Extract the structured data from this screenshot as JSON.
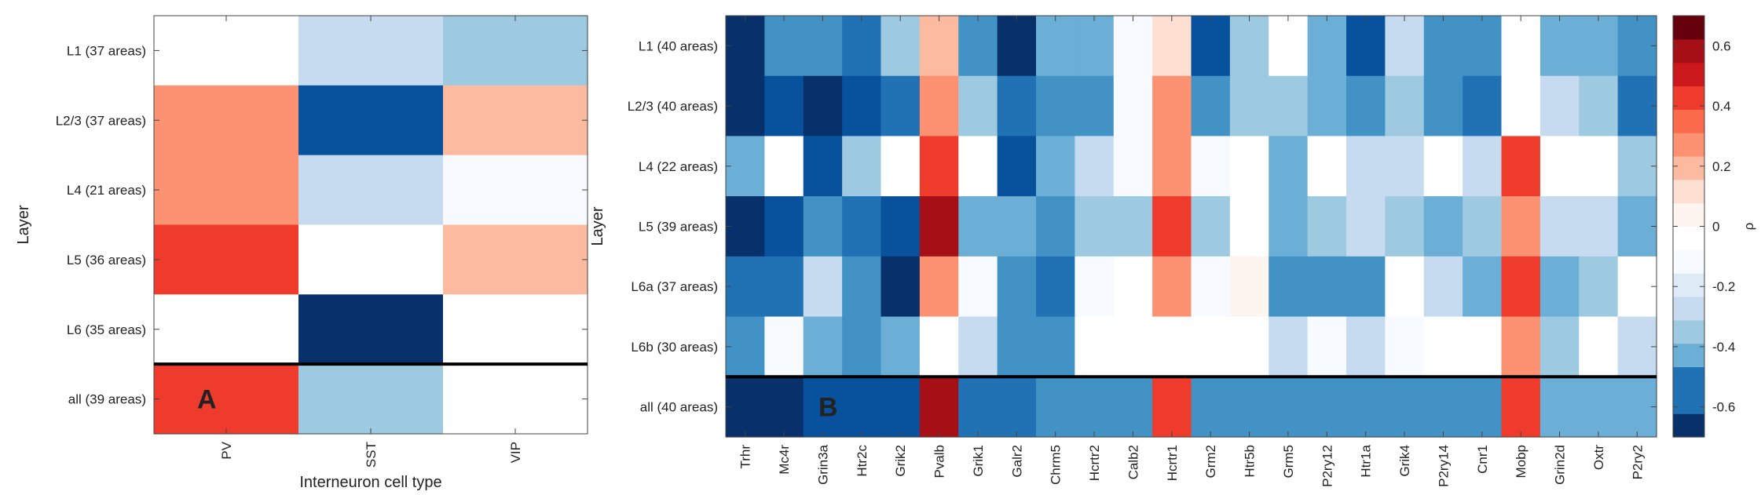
{
  "colors": {
    "scale": [
      "#08306b",
      "#08519c",
      "#2171b5",
      "#4292c6",
      "#6baed6",
      "#9ecae1",
      "#c6dbef",
      "#deebf7",
      "#f7fbff",
      "#ffffff",
      "#fff5f0",
      "#fee0d2",
      "#fcbba1",
      "#fc9272",
      "#fb6a4a",
      "#ef3b2c",
      "#cb181d",
      "#a50f15",
      "#67000d"
    ],
    "highlight_line": "#000000"
  },
  "chart_data": [
    {
      "type": "heatmap",
      "panel_label": "A",
      "xlabel": "Interneuron cell type",
      "ylabel": "Layer",
      "columns": [
        "PV",
        "SST",
        "VIP"
      ],
      "rows": [
        "L1 (37 areas)",
        "L2/3 (37 areas)",
        "L4 (21 areas)",
        "L5 (36 areas)",
        "L6 (35 areas)",
        "all (39 areas)"
      ],
      "values": [
        [
          0.0,
          -0.25,
          -0.35
        ],
        [
          0.3,
          -0.6,
          0.2
        ],
        [
          0.3,
          -0.2,
          -0.1
        ],
        [
          0.5,
          0.0,
          0.2
        ],
        [
          0.0,
          -0.7,
          0.0
        ],
        [
          0.5,
          -0.3,
          0.0
        ]
      ],
      "summary_row_separator": "above last row"
    },
    {
      "type": "heatmap",
      "panel_label": "B",
      "xlabel": "",
      "ylabel": "Layer",
      "columns": [
        "Trhr",
        "Mc4r",
        "Grin3a",
        "Htr2c",
        "Grik2",
        "Pvalb",
        "Grik1",
        "Galr2",
        "Chrm5",
        "Hcrtr2",
        "Calb2",
        "Hcrtr1",
        "Grm2",
        "Htr5b",
        "Grm5",
        "P2ry12",
        "Htr1a",
        "Grik4",
        "P2ry14",
        "Cnr1",
        "Mobp",
        "Grin2d",
        "Oxtr",
        "P2ry2"
      ],
      "rows": [
        "L1 (40 areas)",
        "L2/3 (40 areas)",
        "L4 (22 areas)",
        "L5 (39 areas)",
        "L6a (37 areas)",
        "L6b (30 areas)",
        "all (40 areas)"
      ],
      "values": [
        [
          -0.7,
          -0.45,
          -0.5,
          -0.55,
          -0.3,
          0.25,
          -0.45,
          -0.7,
          -0.4,
          -0.4,
          -0.1,
          0.15,
          -0.6,
          -0.3,
          0.0,
          -0.4,
          -0.6,
          -0.2,
          -0.45,
          -0.5,
          0.0,
          -0.4,
          -0.4,
          -0.45
        ],
        [
          -0.7,
          -0.6,
          -0.7,
          -0.6,
          -0.55,
          0.35,
          -0.3,
          -0.55,
          -0.5,
          -0.45,
          -0.1,
          0.35,
          -0.5,
          -0.3,
          -0.3,
          -0.4,
          -0.5,
          -0.3,
          -0.45,
          -0.55,
          0.0,
          -0.2,
          -0.3,
          -0.55
        ],
        [
          -0.4,
          0.0,
          -0.6,
          -0.3,
          0.0,
          0.45,
          0.0,
          -0.6,
          -0.4,
          -0.2,
          -0.1,
          0.35,
          -0.1,
          0.0,
          -0.4,
          0.0,
          -0.2,
          -0.2,
          0.0,
          -0.2,
          0.45,
          0.0,
          0.0,
          -0.3
        ],
        [
          -0.7,
          -0.6,
          -0.45,
          -0.55,
          -0.6,
          0.6,
          -0.4,
          -0.4,
          -0.45,
          -0.3,
          -0.3,
          0.45,
          -0.3,
          0.0,
          -0.4,
          -0.3,
          -0.2,
          -0.3,
          -0.4,
          -0.3,
          0.35,
          -0.2,
          -0.2,
          -0.4
        ],
        [
          -0.55,
          -0.55,
          -0.2,
          -0.45,
          -0.7,
          0.35,
          -0.1,
          -0.45,
          -0.55,
          -0.1,
          0.0,
          0.35,
          -0.1,
          0.1,
          -0.45,
          -0.45,
          -0.45,
          0.0,
          -0.2,
          -0.4,
          0.5,
          -0.4,
          -0.3,
          0.0
        ],
        [
          -0.45,
          -0.1,
          -0.4,
          -0.45,
          -0.4,
          0.0,
          -0.2,
          -0.5,
          -0.45,
          0.0,
          0.0,
          0.0,
          0.0,
          0.0,
          -0.2,
          -0.1,
          -0.2,
          -0.1,
          0.0,
          0.0,
          0.35,
          -0.3,
          0.0,
          -0.2
        ],
        [
          -0.7,
          -0.7,
          -0.6,
          -0.6,
          -0.6,
          0.6,
          -0.55,
          -0.55,
          -0.5,
          -0.5,
          -0.5,
          0.5,
          -0.45,
          -0.45,
          -0.45,
          -0.45,
          -0.45,
          -0.45,
          -0.45,
          -0.45,
          0.5,
          -0.4,
          -0.4,
          -0.4
        ]
      ],
      "summary_row_separator": "above last row"
    }
  ],
  "colorbar": {
    "label": "ρ",
    "range": [
      -0.7,
      0.7
    ],
    "ticks": [
      -0.6,
      -0.4,
      -0.2,
      0,
      0.2,
      0.4,
      0.6
    ],
    "tick_labels": [
      "-0.6",
      "-0.4",
      "-0.2",
      "0",
      "0.2",
      "0.4",
      "0.6"
    ],
    "levels": 18
  }
}
